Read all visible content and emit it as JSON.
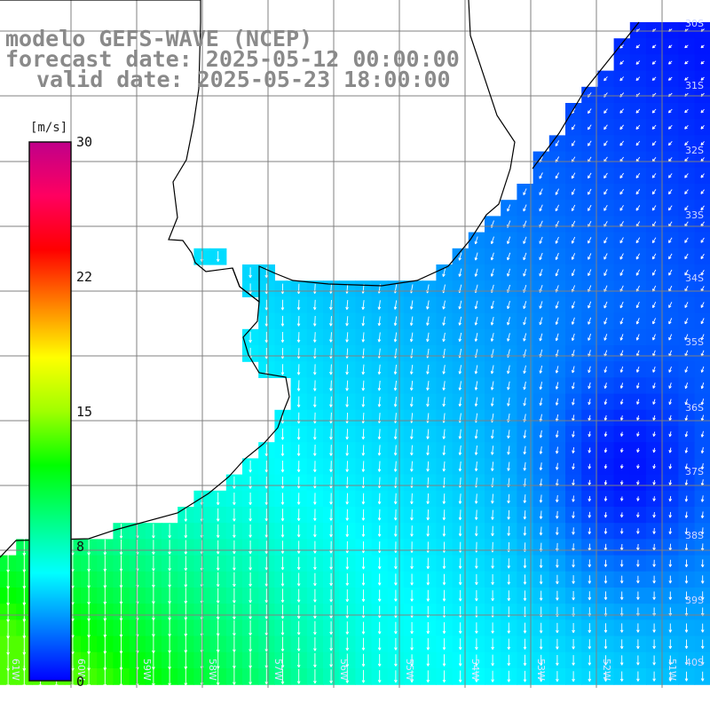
{
  "titles": {
    "line1": "modelo GEFS-WAVE (NCEP)",
    "line2": "forecast date: 2025-05-12 00:00:00",
    "line3": "valid date: 2025-05-23 18:00:00"
  },
  "colorbar": {
    "unit": "[m/s]",
    "ticks": [
      "30",
      "22",
      "15",
      "8",
      "0"
    ],
    "colors": [
      "#0000ff",
      "#0080ff",
      "#00ffff",
      "#00ff80",
      "#00ff00",
      "#a0ff00",
      "#ffff00",
      "#ff8000",
      "#ff0000",
      "#ff0060",
      "#c0008a"
    ]
  },
  "map": {
    "lat_labels": [
      "30S",
      "31S",
      "32S",
      "33S",
      "34S",
      "35S",
      "36S",
      "37S",
      "38S",
      "39S",
      "40S"
    ],
    "lon_labels": [
      "61W",
      "60W",
      "59W",
      "58W",
      "57W",
      "56W",
      "55W",
      "54W",
      "53W",
      "52W",
      "51W"
    ],
    "land_color": "#ffffff",
    "coast_color": "#000000",
    "grid_color": "#808080",
    "arrow_color": "#ffffff"
  }
}
